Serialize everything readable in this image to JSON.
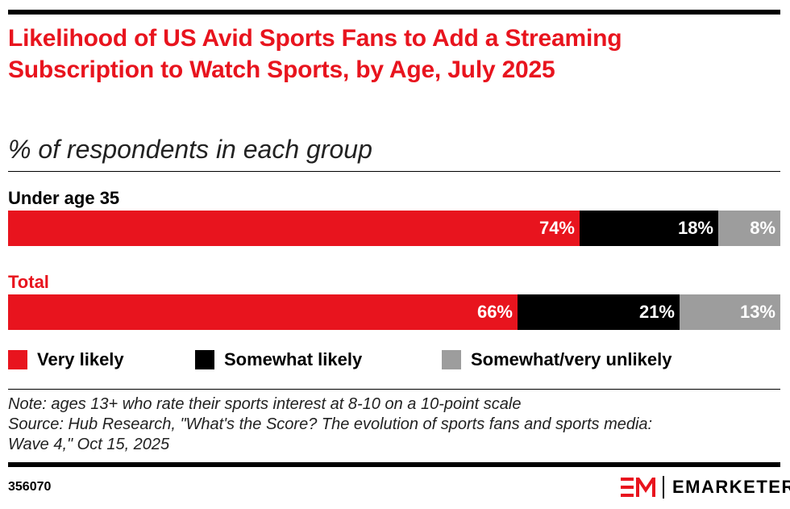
{
  "chart_data": {
    "type": "bar",
    "orientation": "horizontal-stacked-100",
    "title": "Likelihood of US Avid Sports Fans to Add a Streaming Subscription to Watch Sports, by Age, July 2025",
    "subtitle": "% of respondents in each group",
    "categories": [
      "Under age 35",
      "Total"
    ],
    "series": [
      {
        "name": "Very likely",
        "values": [
          74,
          66
        ],
        "color": "#e8141e"
      },
      {
        "name": "Somewhat likely",
        "values": [
          18,
          21
        ],
        "color": "#000000"
      },
      {
        "name": "Somewhat/very unlikely",
        "values": [
          8,
          13
        ],
        "color": "#9d9d9d"
      }
    ],
    "value_labels": [
      [
        "74%",
        "18%",
        "8%"
      ],
      [
        "66%",
        "21%",
        "13%"
      ]
    ],
    "category_label_colors": [
      "#000000",
      "#e8141e"
    ],
    "legend_placement": "bottom",
    "xlim": [
      0,
      100
    ],
    "grid": false
  },
  "note": "Note: ages 13+ who rate their sports interest at 8-10 on a 10-point scale",
  "source_line1": "Source: Hub Research, \"What's the Score? The evolution of sports fans and sports media:",
  "source_line2": "Wave 4,\" Oct 15, 2025",
  "chart_id": "356070",
  "brand": {
    "name": "EMARKETER",
    "accent": "#e8141e"
  }
}
